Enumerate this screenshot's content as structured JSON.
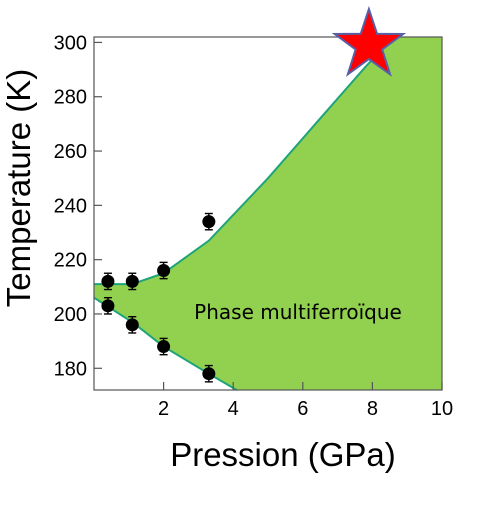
{
  "chart_data": {
    "type": "scatter",
    "xlabel": "Pression (GPa)",
    "ylabel": "Temperature (K)",
    "xlim": [
      0,
      10
    ],
    "ylim": [
      172,
      302
    ],
    "x_ticks": [
      2,
      4,
      6,
      8,
      10
    ],
    "y_ticks": [
      180,
      200,
      220,
      240,
      260,
      280,
      300
    ],
    "grid": false,
    "annotation": "Phase multiferroïque",
    "region_color": "#92d050",
    "boundary_color": "#1fa37a",
    "series": [
      {
        "points": [
          {
            "x": 0.4,
            "y": 212
          },
          {
            "x": 1.1,
            "y": 212
          },
          {
            "x": 2.0,
            "y": 216
          },
          {
            "x": 3.3,
            "y": 234
          },
          {
            "x": 0.4,
            "y": 203
          },
          {
            "x": 1.1,
            "y": 196
          },
          {
            "x": 2.0,
            "y": 188
          },
          {
            "x": 3.3,
            "y": 178
          }
        ],
        "error": 3,
        "color": "#000000"
      }
    ],
    "upper_boundary": [
      {
        "x": 0,
        "y": 211
      },
      {
        "x": 1.1,
        "y": 211
      },
      {
        "x": 2.0,
        "y": 215
      },
      {
        "x": 3.3,
        "y": 227
      },
      {
        "x": 5,
        "y": 250
      },
      {
        "x": 6.5,
        "y": 272
      },
      {
        "x": 7.8,
        "y": 291
      },
      {
        "x": 8.6,
        "y": 302
      }
    ],
    "lower_boundary": [
      {
        "x": 0,
        "y": 206
      },
      {
        "x": 1.1,
        "y": 197
      },
      {
        "x": 2.0,
        "y": 188
      },
      {
        "x": 3.3,
        "y": 178
      },
      {
        "x": 4.1,
        "y": 172
      }
    ],
    "marker_star": {
      "x": 7.9,
      "y": 299,
      "color": "#ff0000",
      "outline": "#5560a8"
    }
  }
}
